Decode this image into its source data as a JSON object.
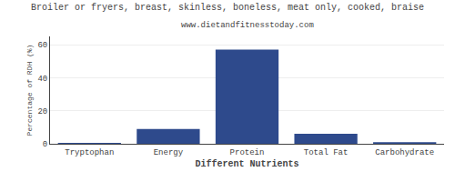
{
  "chart_data": {
    "type": "bar",
    "title": "Broiler or fryers, breast, skinless, boneless, meat only, cooked, braise",
    "subtitle": "www.dietandfitnesstoday.com",
    "categories": [
      "Tryptophan",
      "Energy",
      "Protein",
      "Total Fat",
      "Carbohydrate"
    ],
    "values": [
      0.5,
      9,
      57,
      6,
      1
    ],
    "color": "#2e4a8c",
    "xlabel": "Different Nutrients",
    "ylabel": "Percentage of RDH (%)",
    "ylim": [
      0,
      65
    ],
    "yticks": [
      0,
      20,
      40,
      60
    ],
    "grid": true
  }
}
